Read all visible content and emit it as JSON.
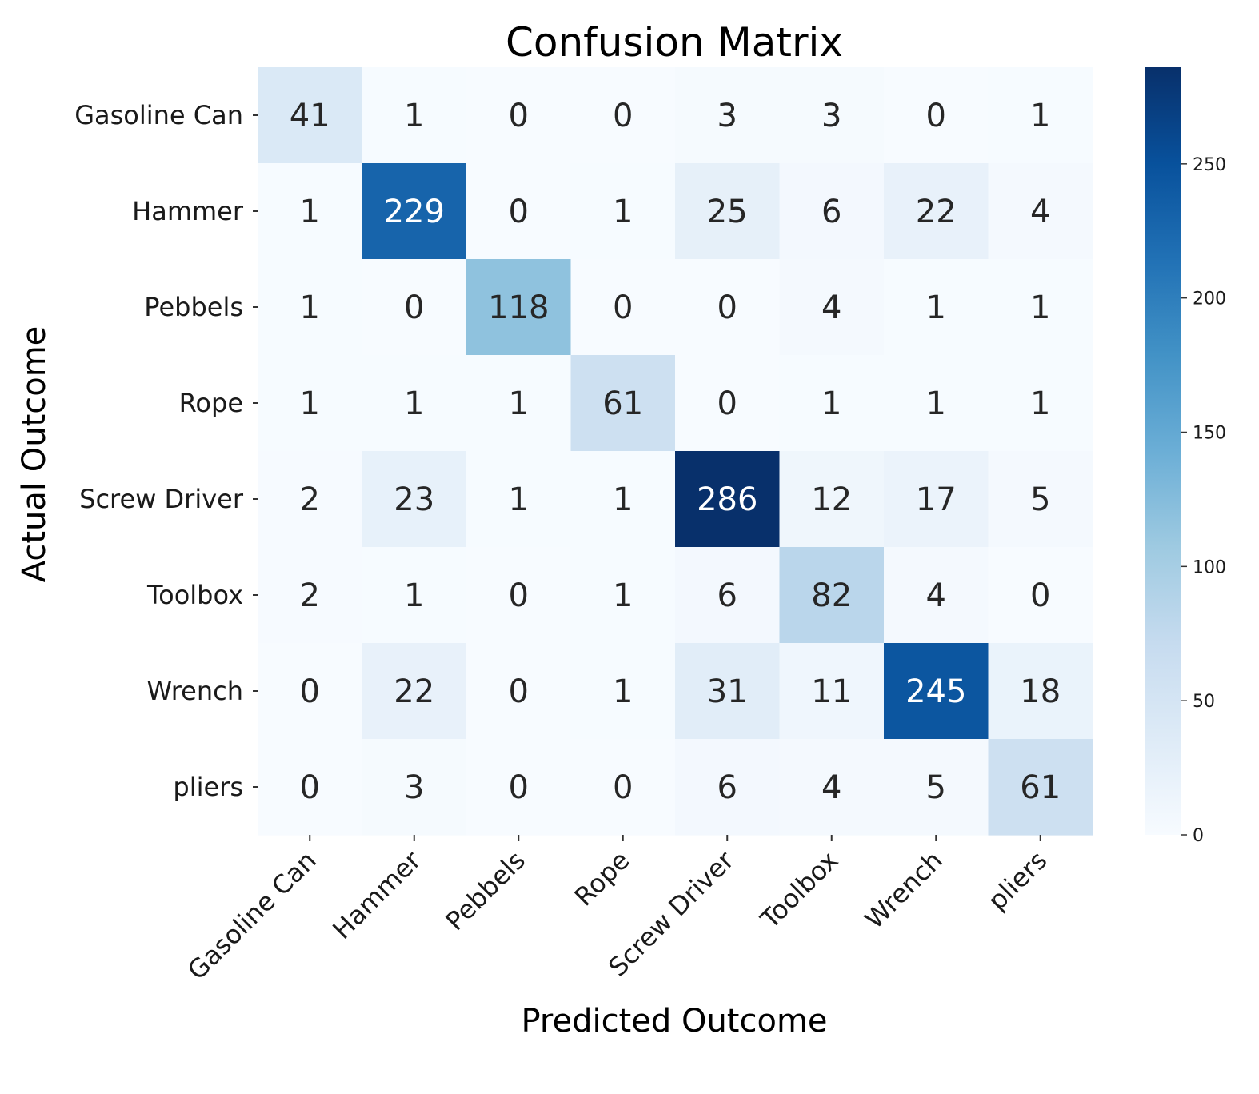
{
  "chart_data": {
    "type": "heatmap",
    "title": "Confusion Matrix",
    "xlabel": "Predicted Outcome",
    "ylabel": "Actual Outcome",
    "categories": [
      "Gasoline Can",
      "Hammer",
      "Pebbels",
      "Rope",
      "Screw Driver",
      "Toolbox",
      "Wrench",
      "pliers"
    ],
    "matrix": [
      [
        41,
        1,
        0,
        0,
        3,
        3,
        0,
        1
      ],
      [
        1,
        229,
        0,
        1,
        25,
        6,
        22,
        4
      ],
      [
        1,
        0,
        118,
        0,
        0,
        4,
        1,
        1
      ],
      [
        1,
        1,
        1,
        61,
        0,
        1,
        1,
        1
      ],
      [
        2,
        23,
        1,
        1,
        286,
        12,
        17,
        5
      ],
      [
        2,
        1,
        0,
        1,
        6,
        82,
        4,
        0
      ],
      [
        0,
        22,
        0,
        1,
        31,
        11,
        245,
        18
      ],
      [
        0,
        3,
        0,
        0,
        6,
        4,
        5,
        61
      ]
    ],
    "colormap": "Blues",
    "colorbar": {
      "vmin": 0,
      "vmax": 286,
      "ticks": [
        0,
        50,
        100,
        150,
        200,
        250
      ]
    },
    "colors": {
      "low": "#f7fbff",
      "high": "#08306b"
    }
  }
}
